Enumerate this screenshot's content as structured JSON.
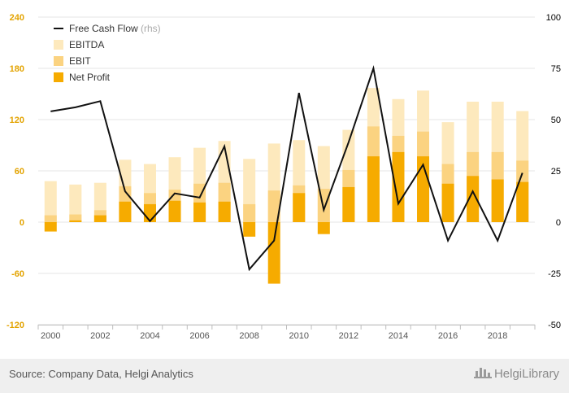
{
  "chart_data": {
    "type": "bar",
    "x": [
      "2000",
      "2001",
      "2002",
      "2003",
      "2004",
      "2005",
      "2006",
      "2007",
      "2008",
      "2009",
      "2010",
      "2011",
      "2012",
      "2013",
      "2014",
      "2015",
      "2016",
      "2017",
      "2018",
      "2019"
    ],
    "x_tick_labels": [
      "2000",
      "2002",
      "2004",
      "2006",
      "2008",
      "2010",
      "2012",
      "2014",
      "2016",
      "2018"
    ],
    "series": [
      {
        "name": "EBITDA",
        "kind": "bar",
        "axis": "left",
        "color": "#fde9bd",
        "values": [
          48,
          44,
          46,
          73,
          68,
          76,
          87,
          95,
          74,
          92,
          96,
          89,
          108,
          157,
          144,
          154,
          117,
          141,
          141,
          130
        ]
      },
      {
        "name": "EBIT",
        "kind": "bar",
        "axis": "left",
        "color": "#fbd381",
        "values": [
          8,
          9,
          14,
          42,
          34,
          38,
          45,
          46,
          21,
          37,
          43,
          39,
          61,
          112,
          101,
          106,
          68,
          82,
          82,
          72
        ]
      },
      {
        "name": "Net Profit",
        "kind": "bar",
        "axis": "left",
        "color": "#f6ab00",
        "values": [
          -11,
          2,
          8,
          24,
          21,
          25,
          23,
          24,
          -17,
          -72,
          34,
          -14,
          41,
          77,
          82,
          77,
          45,
          54,
          50,
          47
        ]
      },
      {
        "name": "Free Cash Flow",
        "kind": "line",
        "axis": "right",
        "color": "#111111",
        "values": [
          54,
          56,
          59,
          15,
          0.5,
          14,
          12,
          37,
          -23,
          -9,
          63,
          6,
          39,
          75,
          9,
          28,
          -9,
          15,
          -9,
          24
        ]
      }
    ],
    "legend": {
      "position": "top-left",
      "items": [
        {
          "label": "Free Cash Flow",
          "suffix": "(rhs)",
          "marker": "line",
          "color": "#111111"
        },
        {
          "label": "EBITDA",
          "marker": "square",
          "color": "#fde9bd"
        },
        {
          "label": "EBIT",
          "marker": "square",
          "color": "#fbd381"
        },
        {
          "label": "Net Profit",
          "marker": "square",
          "color": "#f6ab00"
        }
      ]
    },
    "y_left": {
      "min": -120,
      "max": 240,
      "ticks": [
        240,
        180,
        120,
        60,
        0,
        -60,
        -120
      ],
      "color": "#e3a300"
    },
    "y_right": {
      "min": -50,
      "max": 100,
      "ticks": [
        100,
        75,
        50,
        25,
        0,
        -25,
        -50
      ],
      "color": "#000000"
    },
    "grid": true
  },
  "footer": {
    "source": "Source: Company Data, Helgi Analytics",
    "logo": "HelgiLibrary"
  }
}
